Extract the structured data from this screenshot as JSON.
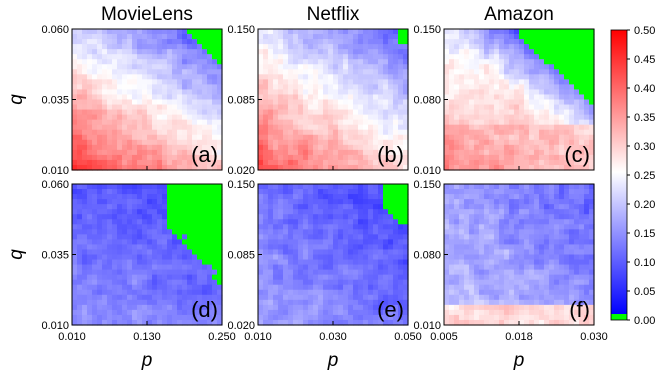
{
  "chart_data": {
    "type": "heatmap",
    "columns": [
      {
        "title": "MovieLens",
        "p_ticks": [
          "0.010",
          "0.130",
          "0.250"
        ],
        "q_ticks": [
          "0.060",
          "0.035",
          "0.010"
        ]
      },
      {
        "title": "Netflix",
        "p_ticks": [
          "0.010",
          "0.030",
          "0.050"
        ],
        "q_ticks": [
          "0.150",
          "0.085",
          "0.020"
        ]
      },
      {
        "title": "Amazon",
        "p_ticks": [
          "0.005",
          "0.018",
          "0.030"
        ],
        "q_ticks": [
          "0.150",
          "0.080",
          "0.010"
        ]
      }
    ],
    "panels": [
      {
        "label": "(a)",
        "row": 0,
        "col": 0,
        "dataset": "MovieLens"
      },
      {
        "label": "(b)",
        "row": 0,
        "col": 1,
        "dataset": "Netflix"
      },
      {
        "label": "(c)",
        "row": 0,
        "col": 2,
        "dataset": "Amazon"
      },
      {
        "label": "(d)",
        "row": 1,
        "col": 0,
        "dataset": "MovieLens"
      },
      {
        "label": "(e)",
        "row": 1,
        "col": 1,
        "dataset": "Netflix"
      },
      {
        "label": "(f)",
        "row": 1,
        "col": 2,
        "dataset": "Amazon"
      }
    ],
    "xlabel": "p",
    "ylabel": "q",
    "colorbar": {
      "ticks": [
        "0.50",
        "0.45",
        "0.40",
        "0.35",
        "0.30",
        "0.25",
        "0.20",
        "0.15",
        "0.10",
        "0.05",
        "0.00"
      ],
      "range": [
        0,
        0.5
      ],
      "colors": {
        "low": "#0000ff",
        "mid": "#ffffff",
        "high": "#ff0000",
        "zero": "#00ff00"
      }
    }
  }
}
